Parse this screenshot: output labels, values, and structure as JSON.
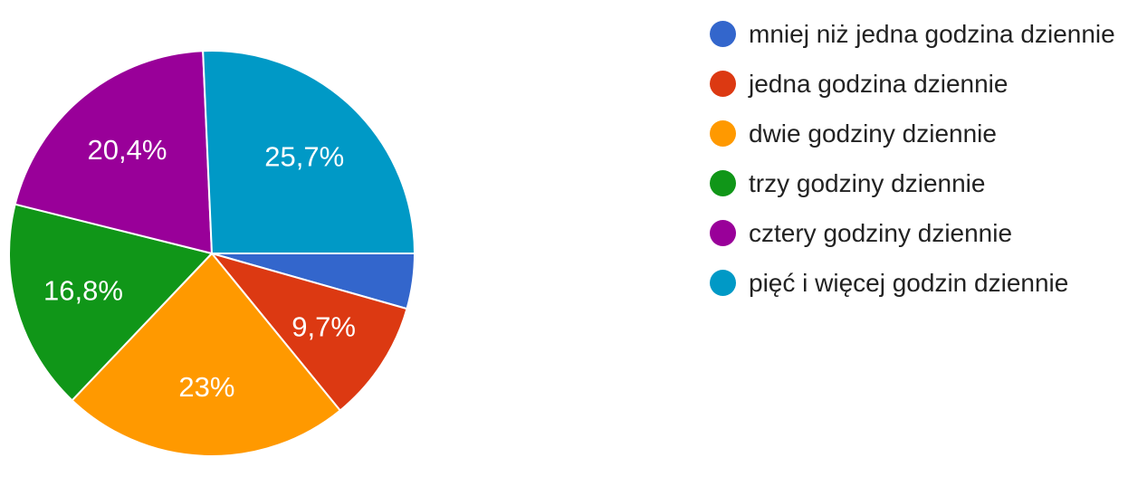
{
  "chart_data": {
    "type": "pie",
    "title": "",
    "legend_position": "right",
    "labels": [
      "mniej niż jedna godzina dziennie",
      "jedna godzina dziennie",
      "dwie godziny dziennie",
      "trzy godziny dziennie",
      "cztery godziny dziennie",
      "pięć i więcej godzin dziennie"
    ],
    "values": [
      4.4,
      9.7,
      23,
      16.8,
      20.4,
      25.7
    ],
    "value_labels": [
      "",
      "9,7%",
      "23%",
      "16,8%",
      "20,4%",
      "25,7%"
    ],
    "colors": [
      "#3366cc",
      "#dc3912",
      "#ff9900",
      "#109618",
      "#990099",
      "#0099c6"
    ]
  }
}
